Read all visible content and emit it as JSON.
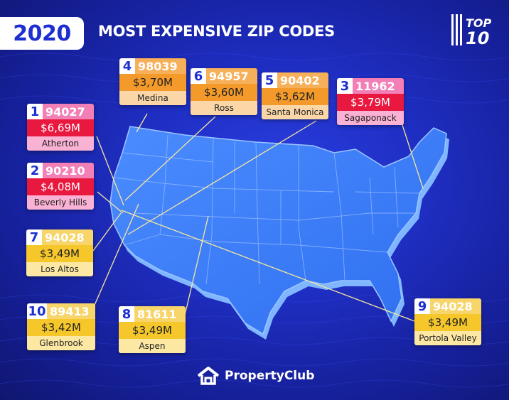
{
  "header": {
    "year": "2020",
    "title": "MOST EXPENSIVE ZIP CODES",
    "badge_top": "TOP",
    "badge_num": "10"
  },
  "colors": {
    "red_theme": "#e8183f",
    "orange_theme": "#f39a2b",
    "yellow_theme": "#f5c72a",
    "background": "#1f2fc4"
  },
  "cards": [
    {
      "rank": "1",
      "zip": "94027",
      "price": "$6,69M",
      "city": "Atherton"
    },
    {
      "rank": "2",
      "zip": "90210",
      "price": "$4,08M",
      "city": "Beverly Hills"
    },
    {
      "rank": "3",
      "zip": "11962",
      "price": "$3,79M",
      "city": "Sagaponack"
    },
    {
      "rank": "4",
      "zip": "98039",
      "price": "$3,70M",
      "city": "Medina"
    },
    {
      "rank": "5",
      "zip": "90402",
      "price": "$3,62M",
      "city": "Santa Monica"
    },
    {
      "rank": "6",
      "zip": "94957",
      "price": "$3,60M",
      "city": "Ross"
    },
    {
      "rank": "7",
      "zip": "94028",
      "price": "$3,49M",
      "city": "Los Altos"
    },
    {
      "rank": "8",
      "zip": "81611",
      "price": "$3,49M",
      "city": "Aspen"
    },
    {
      "rank": "9",
      "zip": "94028",
      "price": "$3,49M",
      "city": "Portola Valley"
    },
    {
      "rank": "10",
      "zip": "89413",
      "price": "$3,42M",
      "city": "Glenbrook"
    }
  ],
  "footer": {
    "brand": "PropertyClub",
    "logo_icon": "house-icon"
  }
}
